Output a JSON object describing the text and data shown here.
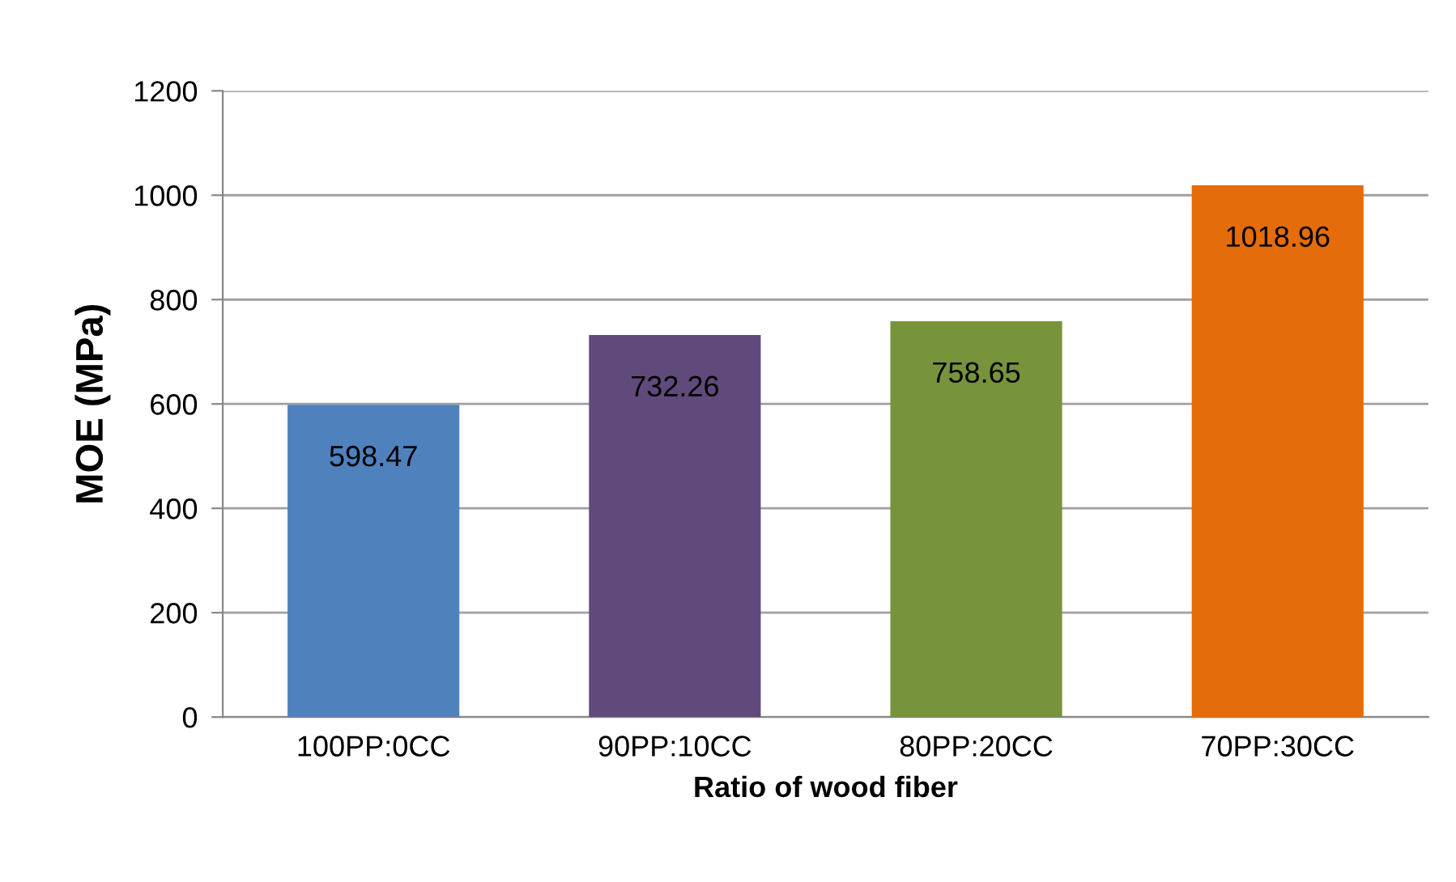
{
  "chart_data": {
    "type": "bar",
    "xlabel": "Ratio of wood fiber",
    "ylabel": "MOE (MPa)",
    "categories": [
      "100PP:0CC",
      "90PP:10CC",
      "80PP:20CC",
      "70PP:30CC"
    ],
    "values": [
      598.47,
      732.26,
      758.65,
      1018.96
    ],
    "colors": [
      "#4f81bd",
      "#604a7b",
      "#77933c",
      "#e46c0a"
    ],
    "ylim": [
      0,
      1200
    ],
    "yticks": [
      0,
      200,
      400,
      600,
      800,
      1000,
      1200
    ],
    "grid": "y",
    "data_labels": true
  }
}
